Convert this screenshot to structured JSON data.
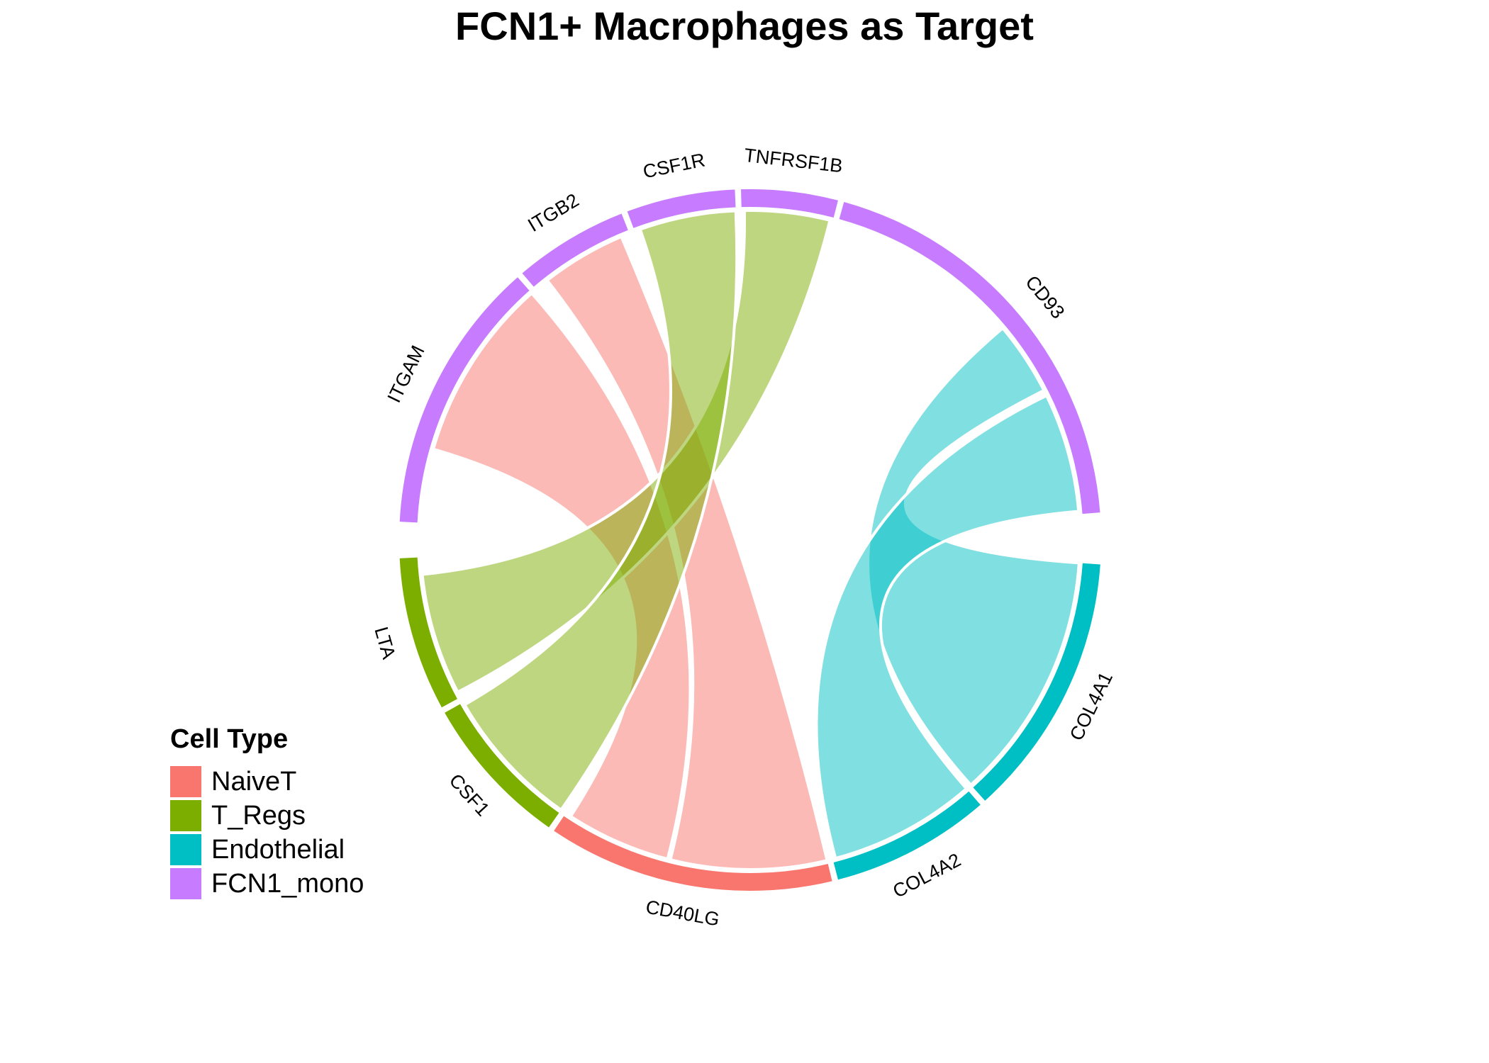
{
  "title": "FCN1+ Macrophages as Target",
  "legend": {
    "title": "Cell Type",
    "items": [
      {
        "label": "NaiveT",
        "color": "#F8766D"
      },
      {
        "label": "T_Regs",
        "color": "#7CAE00"
      },
      {
        "label": "Endothelial",
        "color": "#00BFC4"
      },
      {
        "label": "FCN1_mono",
        "color": "#C77CFF"
      }
    ]
  },
  "chord_data": {
    "sectors": [
      {
        "name": "CD93",
        "cell_type": "FCN1_mono"
      },
      {
        "name": "TNFRSF1B",
        "cell_type": "FCN1_mono"
      },
      {
        "name": "CSF1R",
        "cell_type": "FCN1_mono"
      },
      {
        "name": "ITGB2",
        "cell_type": "FCN1_mono"
      },
      {
        "name": "ITGAM",
        "cell_type": "FCN1_mono"
      },
      {
        "name": "LTA",
        "cell_type": "T_Regs"
      },
      {
        "name": "CSF1",
        "cell_type": "T_Regs"
      },
      {
        "name": "CD40LG",
        "cell_type": "NaiveT"
      },
      {
        "name": "COL4A2",
        "cell_type": "Endothelial"
      },
      {
        "name": "COL4A1",
        "cell_type": "Endothelial"
      }
    ],
    "links": [
      {
        "from": "CD40LG",
        "to": "ITGB2",
        "cell_type": "NaiveT"
      },
      {
        "from": "CD40LG",
        "to": "ITGAM",
        "cell_type": "NaiveT"
      },
      {
        "from": "LTA",
        "to": "TNFRSF1B",
        "cell_type": "T_Regs"
      },
      {
        "from": "CSF1",
        "to": "CSF1R",
        "cell_type": "T_Regs"
      },
      {
        "from": "COL4A1",
        "to": "CD93",
        "cell_type": "Endothelial"
      },
      {
        "from": "COL4A2",
        "to": "CD93",
        "cell_type": "Endothelial"
      }
    ]
  }
}
